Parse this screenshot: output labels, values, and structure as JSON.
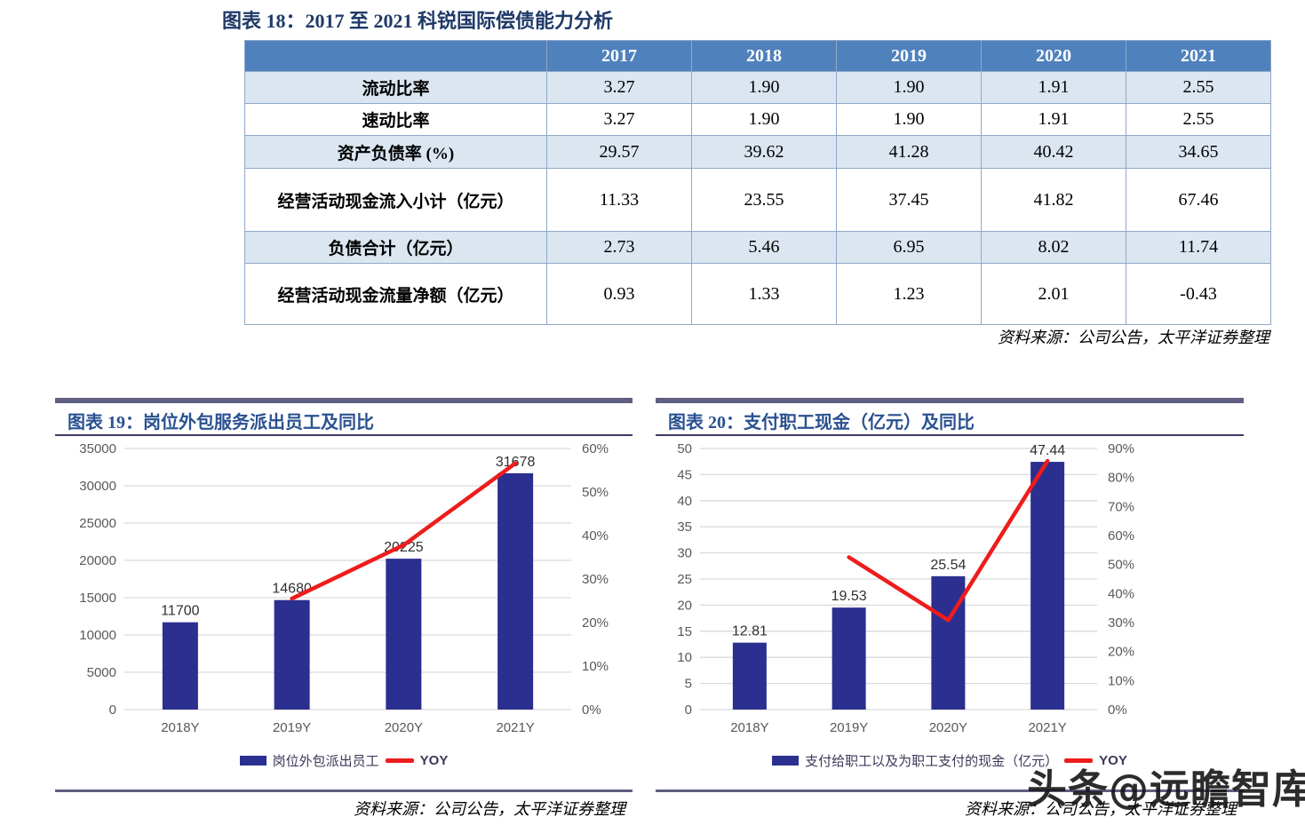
{
  "watermark": "头条@远瞻智库",
  "colors": {
    "bar": "#2b2f90",
    "yoy_line": "#ee1c1c",
    "table_header_bg": "#4f81bd",
    "table_row_alt_bg": "#dce6f1",
    "title_blue": "#2a5191",
    "topbar_slate": "#5f5f82",
    "gridline": "#d9d9d9",
    "axis_text": "#595959"
  },
  "chart_data": [
    {
      "type": "table",
      "title": "图表 18：2017 至 2021 科锐国际偿债能力分析",
      "columns": [
        "2017",
        "2018",
        "2019",
        "2020",
        "2021"
      ],
      "rows": [
        {
          "label": "流动比率",
          "values": [
            "3.27",
            "1.90",
            "1.90",
            "1.91",
            "2.55"
          ]
        },
        {
          "label": "速动比率",
          "values": [
            "3.27",
            "1.90",
            "1.90",
            "1.91",
            "2.55"
          ]
        },
        {
          "label": "资产负债率 (%)",
          "values": [
            "29.57",
            "39.62",
            "41.28",
            "40.42",
            "34.65"
          ]
        },
        {
          "label": "经营活动现金流入小计（亿元）",
          "values": [
            "11.33",
            "23.55",
            "37.45",
            "41.82",
            "67.46"
          ]
        },
        {
          "label": "负债合计（亿元）",
          "values": [
            "2.73",
            "5.46",
            "6.95",
            "8.02",
            "11.74"
          ]
        },
        {
          "label": "经营活动现金流量净额（亿元）",
          "values": [
            "0.93",
            "1.33",
            "1.23",
            "2.01",
            "-0.43"
          ]
        }
      ],
      "source": "资料来源：公司公告，太平洋证券整理"
    },
    {
      "type": "bar+line",
      "title": "图表 19：岗位外包服务派出员工及同比",
      "categories": [
        "2018Y",
        "2019Y",
        "2020Y",
        "2021Y"
      ],
      "series": [
        {
          "name": "岗位外包派出员工",
          "kind": "bar",
          "axis": "left",
          "values": [
            11700,
            14680,
            20225,
            31678
          ]
        },
        {
          "name": "YOY",
          "kind": "line",
          "axis": "right",
          "values": [
            null,
            25.5,
            37.8,
            56.6
          ]
        }
      ],
      "left_axis": {
        "min": 0,
        "max": 35000,
        "step": 5000,
        "suffix": ""
      },
      "right_axis": {
        "min": 0,
        "max": 60,
        "step": 10,
        "suffix": "%"
      },
      "grid": true,
      "legend_position": "bottom",
      "source": "资料来源：公司公告，太平洋证券整理"
    },
    {
      "type": "bar+line",
      "title": "图表 20：支付职工现金（亿元）及同比",
      "categories": [
        "2018Y",
        "2019Y",
        "2020Y",
        "2021Y"
      ],
      "series": [
        {
          "name": "支付给职工以及为职工支付的现金（亿元）",
          "kind": "bar",
          "axis": "left",
          "values": [
            12.81,
            19.53,
            25.54,
            47.44
          ]
        },
        {
          "name": "YOY",
          "kind": "line",
          "axis": "right",
          "values": [
            null,
            52.5,
            30.8,
            85.7
          ]
        }
      ],
      "left_axis": {
        "min": 0,
        "max": 50,
        "step": 5,
        "suffix": ""
      },
      "right_axis": {
        "min": 0,
        "max": 90,
        "step": 10,
        "suffix": "%"
      },
      "grid": true,
      "legend_position": "bottom",
      "source": "资料来源：公司公告，太平洋证券整理"
    }
  ]
}
